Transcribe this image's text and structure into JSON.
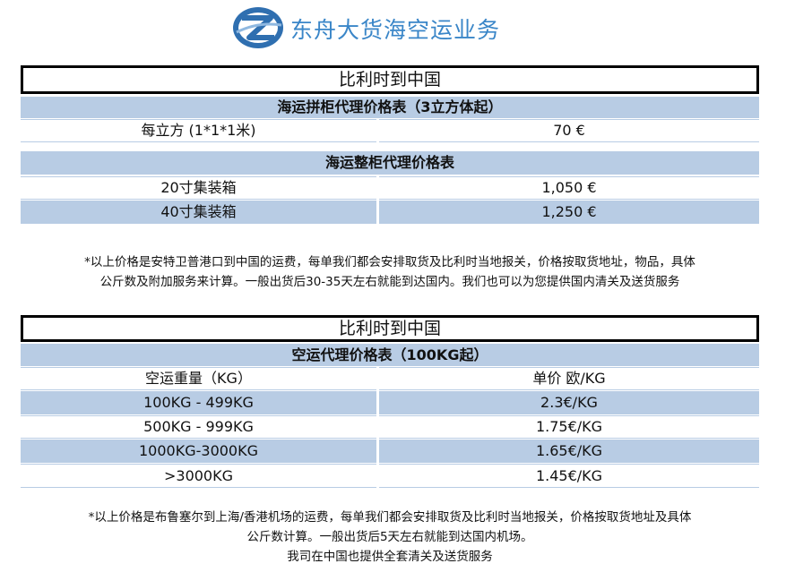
{
  "brand": {
    "name": "东舟大货海空运业务"
  },
  "sea": {
    "title": "比利时到中国",
    "lcl": {
      "header": "海运拼柜代理价格表（3立方体起）",
      "rows": [
        {
          "label": "每立方 (1*1*1米)",
          "price": "70 €"
        }
      ]
    },
    "fcl": {
      "header": "海运整柜代理价格表",
      "rows": [
        {
          "label": "20寸集装箱",
          "price": "1,050 €"
        },
        {
          "label": "40寸集装箱",
          "price": "1,250 €"
        }
      ]
    },
    "note_line1": "*以上价格是安特卫普港口到中国的运费，每单我们都会安排取货及比利时当地报关，价格按取货地址，物品，具体",
    "note_line2": "公斤数及附加服务来计算。一般出货后30-35天左右就能到达国内。我们也可以为您提供国内清关及送货服务"
  },
  "air": {
    "title": "比利时到中国",
    "header": "空运代理价格表（100KG起）",
    "columns": {
      "weight": "空运重量（KG）",
      "price": "单价 欧/KG"
    },
    "rows": [
      {
        "weight": "100KG - 499KG",
        "price": "2.3€/KG"
      },
      {
        "weight": "500KG - 999KG",
        "price": "1.75€/KG"
      },
      {
        "weight": "1000KG-3000KG",
        "price": "1.65€/KG"
      },
      {
        "weight": ">3000KG",
        "price": "1.45€/KG"
      }
    ],
    "note_line1": "*以上价格是布鲁塞尔到上海/香港机场的运费，每单我们都会安排取货及比利时当地报关，价格按取货地址及具体",
    "note_line2": "公斤数计算。一般出货后5天左右就能到达国内机场。",
    "note_line3": "我司在中国也提供全套清关及送货服务"
  },
  "colors": {
    "band": "#b8cce4",
    "brand": "#3a86c8"
  }
}
